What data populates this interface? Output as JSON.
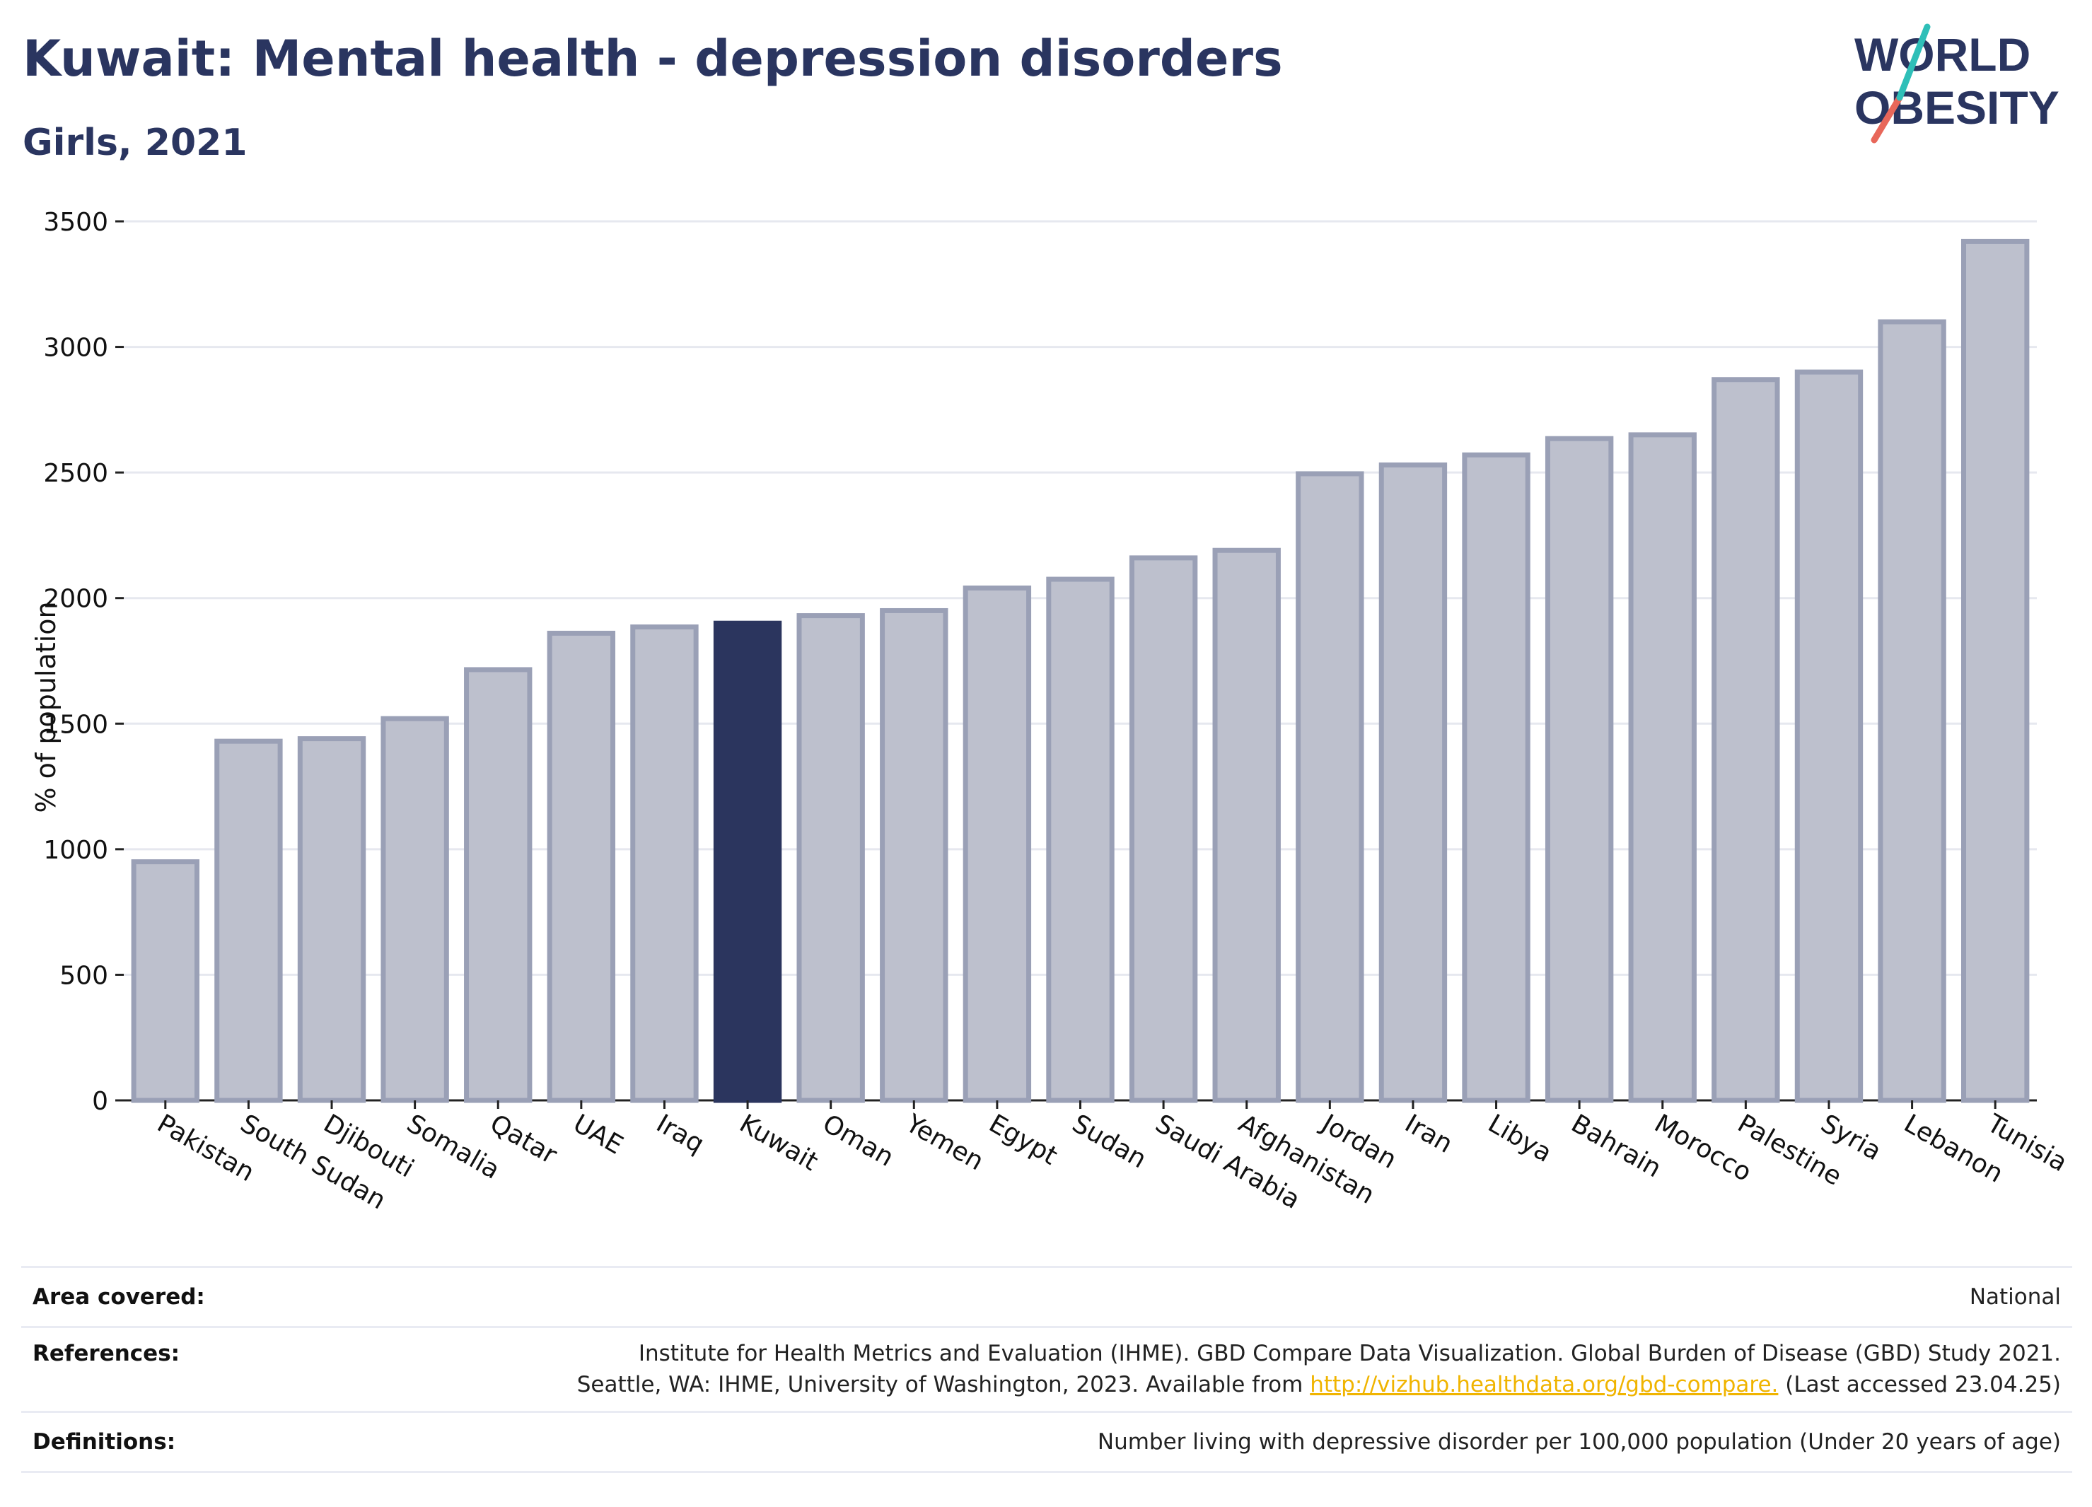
{
  "header": {
    "title": "Kuwait: Mental health - depression disorders",
    "subtitle": "Girls, 2021"
  },
  "logo": {
    "line1": "WORLD",
    "line2": "OBESITY"
  },
  "colors": {
    "highlight": "#2b355e",
    "bar_fill": "#bdc0cd",
    "bar_stroke": "#9aa0b6",
    "grid": "#e6e8ef"
  },
  "chart_data": {
    "type": "bar",
    "ylabel": "% of population",
    "ylim": [
      0,
      3500
    ],
    "yticks": [
      0,
      500,
      1000,
      1500,
      2000,
      2500,
      3000,
      3500
    ],
    "grid": true,
    "highlight": "Kuwait",
    "categories": [
      "Pakistan",
      "South Sudan",
      "Djibouti",
      "Somalia",
      "Qatar",
      "UAE",
      "Iraq",
      "Kuwait",
      "Oman",
      "Yemen",
      "Egypt",
      "Sudan",
      "Saudi Arabia",
      "Afghanistan",
      "Jordan",
      "Iran",
      "Libya",
      "Bahrain",
      "Morocco",
      "Palestine",
      "Syria",
      "Lebanon",
      "Tunisia"
    ],
    "values": [
      950,
      1430,
      1440,
      1520,
      1715,
      1860,
      1885,
      1900,
      1930,
      1950,
      2040,
      2075,
      2160,
      2190,
      2495,
      2530,
      2570,
      2635,
      2650,
      2870,
      2900,
      3100,
      3420
    ]
  },
  "footer": {
    "area_label": "Area covered:",
    "area_value": "National",
    "references_label": "References:",
    "references_line1": "Institute for Health Metrics and Evaluation (IHME). GBD Compare Data Visualization. Global Burden of Disease (GBD) Study 2021.",
    "references_line2_pre": "Seattle, WA: IHME, University of Washington, 2023. Available from",
    "references_link": "http://vizhub.healthdata.org/gbd-compare.",
    "references_line2_post": "(Last accessed 23.04.25)",
    "definitions_label": "Definitions:",
    "definitions_value": "Number living with depressive disorder per 100,000 population (Under 20 years of age)"
  }
}
